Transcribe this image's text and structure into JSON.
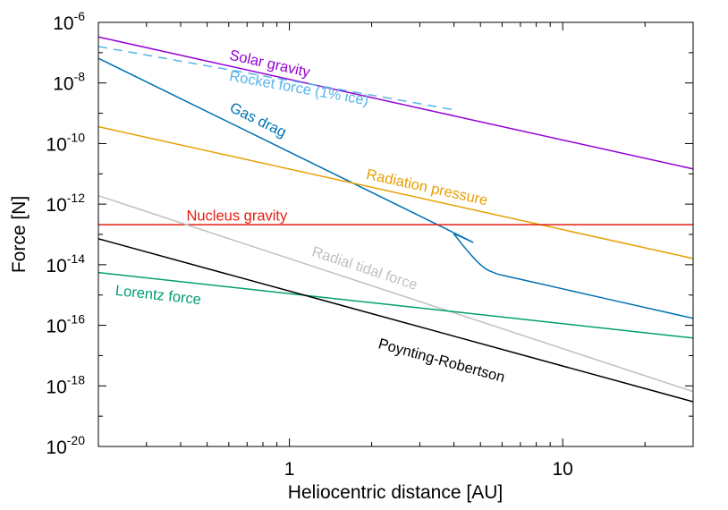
{
  "chart_data": {
    "type": "line",
    "xscale": "log",
    "yscale": "log",
    "xlabel": "Heliocentric distance [AU]",
    "ylabel": "Force [N]",
    "xlim": [
      0.2,
      30
    ],
    "ylim": [
      1e-20,
      1e-06
    ],
    "xticks": [
      {
        "value": 1,
        "label": "1"
      },
      {
        "value": 10,
        "label": "10"
      }
    ],
    "yticks": [
      {
        "value": 1e-06,
        "base": "10",
        "exp": "-6"
      },
      {
        "value": 1e-08,
        "base": "10",
        "exp": "-8"
      },
      {
        "value": 1e-10,
        "base": "10",
        "exp": "-10"
      },
      {
        "value": 1e-12,
        "base": "10",
        "exp": "-12"
      },
      {
        "value": 1e-14,
        "base": "10",
        "exp": "-14"
      },
      {
        "value": 1e-16,
        "base": "10",
        "exp": "-16"
      },
      {
        "value": 1e-18,
        "base": "10",
        "exp": "-18"
      },
      {
        "value": 1e-20,
        "base": "10",
        "exp": "-20"
      }
    ],
    "series": [
      {
        "name": "Solar gravity",
        "color": "#9400d3",
        "dash": false,
        "x": [
          0.2,
          30
        ],
        "y": [
          3.3e-07,
          1.45e-11
        ],
        "label_x": 0.6,
        "label_y": 6e-08
      },
      {
        "name": "Rocket force (1% ice)",
        "color": "#56b4e9",
        "dash": true,
        "x": [
          0.2,
          4.0
        ],
        "y": [
          1.6e-07,
          1.3e-09
        ],
        "label_x": 0.6,
        "label_y": 1.2e-08
      },
      {
        "name": "Gas drag",
        "color": "#0072b2",
        "dash": false,
        "x": [
          0.2,
          3.7,
          4.0,
          4.4,
          5.0,
          5.6,
          7.0,
          30
        ],
        "y": [
          6.5e-08,
          1.6e-13,
          1e-13,
          3.5e-14,
          1e-14,
          5.5e-15,
          3.3e-15,
          1.7e-16
        ],
        "label_x": 0.6,
        "label_y": 1.2e-09
      },
      {
        "name": "Radiation pressure",
        "color": "#e69f00",
        "dash": false,
        "x": [
          0.2,
          30
        ],
        "y": [
          3.6e-10,
          1.6e-14
        ],
        "label_x": 1.9,
        "label_y": 7e-12
      },
      {
        "name": "Nucleus gravity",
        "color": "#e51e10",
        "dash": false,
        "x": [
          0.2,
          30
        ],
        "y": [
          2.1e-13,
          2.1e-13
        ],
        "label_x": 0.42,
        "label_y": 2.9e-13
      },
      {
        "name": "Radial tidal force",
        "color": "#c0c0c0",
        "dash": false,
        "x": [
          0.2,
          30
        ],
        "y": [
          1.9e-12,
          6.5e-19
        ],
        "label_x": 1.2,
        "label_y": 2e-14
      },
      {
        "name": "Lorentz force",
        "color": "#009e73",
        "dash": false,
        "x": [
          0.2,
          30
        ],
        "y": [
          5.5e-15,
          3.8e-17
        ],
        "label_x": 0.23,
        "label_y": 1e-15
      },
      {
        "name": "Poynting-Robertson",
        "color": "#000000",
        "dash": false,
        "x": [
          0.2,
          30
        ],
        "y": [
          7.2e-14,
          3e-19
        ],
        "label_x": 2.1,
        "label_y": 1.8e-17
      }
    ]
  }
}
